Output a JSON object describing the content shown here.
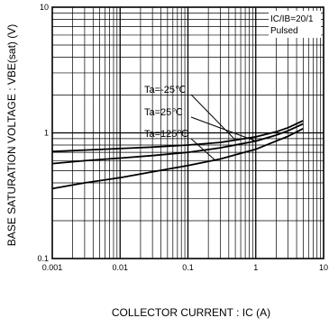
{
  "chart_data": {
    "type": "line",
    "xlabel": "COLLECTOR CURRENT : IC (A)",
    "ylabel": "BASE SATURATION VOLTAGE : VBE(sat) (V)",
    "x_scale": "log",
    "y_scale": "log",
    "xlim": [
      0.001,
      10
    ],
    "ylim": [
      0.1,
      10
    ],
    "x_ticks": [
      "0.001",
      "0.01",
      "0.1",
      "1",
      "10"
    ],
    "y_ticks": [
      "0.1",
      "1",
      "10"
    ],
    "grid": true,
    "annotations": [
      "IC/IB=20/1",
      "Pulsed"
    ],
    "series": [
      {
        "name": "Ta=-25℃",
        "x": [
          0.001,
          0.003,
          0.01,
          0.03,
          0.1,
          0.3,
          1,
          2,
          3,
          5
        ],
        "y": [
          0.71,
          0.73,
          0.75,
          0.77,
          0.8,
          0.84,
          0.93,
          1.02,
          1.1,
          1.25
        ]
      },
      {
        "name": "Ta=25℃",
        "x": [
          0.001,
          0.003,
          0.01,
          0.03,
          0.1,
          0.3,
          1,
          2,
          3,
          5
        ],
        "y": [
          0.57,
          0.6,
          0.63,
          0.66,
          0.7,
          0.76,
          0.86,
          0.96,
          1.04,
          1.18
        ]
      },
      {
        "name": "Ta=125℃",
        "x": [
          0.001,
          0.003,
          0.01,
          0.03,
          0.1,
          0.3,
          1,
          2,
          3,
          5
        ],
        "y": [
          0.36,
          0.4,
          0.44,
          0.49,
          0.55,
          0.62,
          0.74,
          0.86,
          0.94,
          1.08
        ]
      }
    ]
  },
  "colors": {
    "line": "#000000",
    "grid": "#000000",
    "background": "#ffffff"
  }
}
